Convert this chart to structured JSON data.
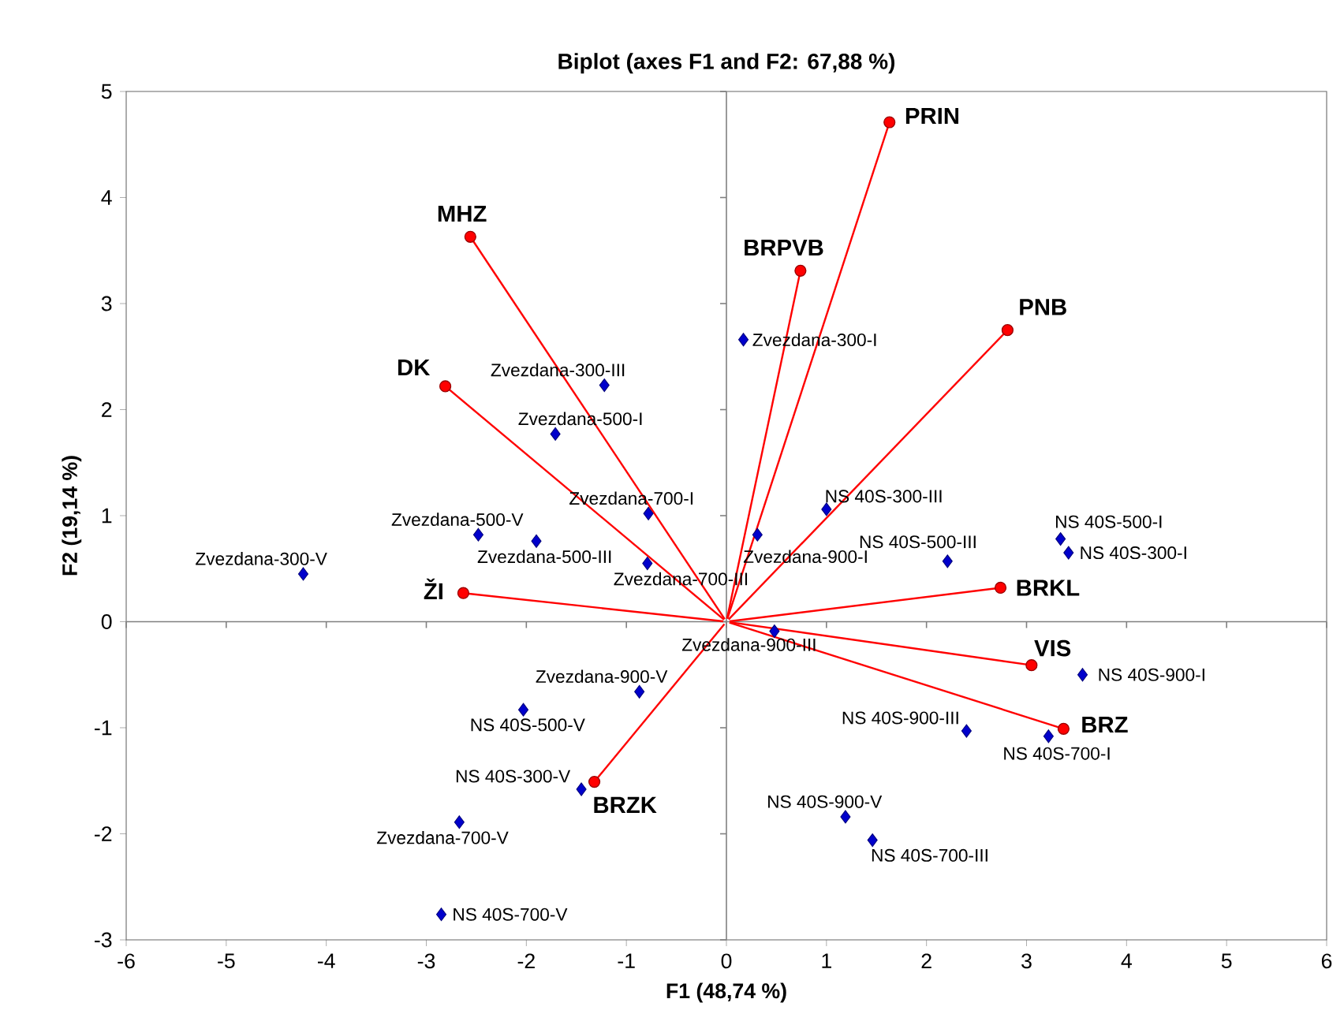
{
  "chart_data": {
    "type": "scatter",
    "title": "Biplot (axes F1 and F2: 67,88 %)",
    "xlabel": "F1 (48,74 %)",
    "ylabel": "F2 (19,14 %)",
    "xlim": [
      -6,
      6
    ],
    "ylim": [
      -3,
      5
    ],
    "xticks": [
      -6,
      -5,
      -4,
      -3,
      -2,
      -1,
      0,
      1,
      2,
      3,
      4,
      5,
      6
    ],
    "yticks": [
      -3,
      -2,
      -1,
      0,
      1,
      2,
      3,
      4,
      5
    ],
    "series": [
      {
        "type": "scatter",
        "color": "#0000cc",
        "marker": "diamond",
        "x": [
          0.17,
          -1.22,
          -1.71,
          -0.78,
          -2.48,
          -1.9,
          -0.79,
          -4.23,
          0.31,
          1.0,
          2.21,
          3.34,
          3.42,
          0.48,
          3.56,
          2.4,
          3.22,
          1.19,
          1.46,
          -0.87,
          -2.03,
          -1.45,
          -2.67,
          -2.85
        ],
        "values": [
          2.66,
          2.23,
          1.77,
          1.02,
          0.82,
          0.76,
          0.55,
          0.45,
          0.82,
          1.06,
          0.57,
          0.78,
          0.65,
          -0.09,
          -0.5,
          -1.03,
          -1.08,
          -1.84,
          -2.06,
          -0.66,
          -0.83,
          -1.58,
          -1.89,
          -2.76
        ]
      },
      {
        "type": "line",
        "name": "PRIN",
        "color": "#ff0000",
        "marker": "circle",
        "x": [
          0,
          1.63
        ],
        "values": [
          0,
          4.71
        ]
      },
      {
        "type": "line",
        "name": "MHZ",
        "color": "#ff0000",
        "marker": "circle",
        "x": [
          0,
          -2.56
        ],
        "values": [
          0,
          3.63
        ]
      },
      {
        "type": "line",
        "name": "BRPVB",
        "color": "#ff0000",
        "marker": "circle",
        "x": [
          0,
          0.74
        ],
        "values": [
          0,
          3.31
        ]
      },
      {
        "type": "line",
        "name": "PNB",
        "color": "#ff0000",
        "marker": "circle",
        "x": [
          0,
          2.81
        ],
        "values": [
          0,
          2.75
        ]
      },
      {
        "type": "line",
        "name": "DK",
        "color": "#ff0000",
        "marker": "circle",
        "x": [
          0,
          -2.81
        ],
        "values": [
          0,
          2.22
        ]
      },
      {
        "type": "line",
        "name": "ŽI",
        "color": "#ff0000",
        "marker": "circle",
        "x": [
          0,
          -2.63
        ],
        "values": [
          0,
          0.27
        ]
      },
      {
        "type": "line",
        "name": "BRKL",
        "color": "#ff0000",
        "marker": "circle",
        "x": [
          0,
          2.74
        ],
        "values": [
          0,
          0.32
        ]
      },
      {
        "type": "line",
        "name": "VIS",
        "color": "#ff0000",
        "marker": "circle",
        "x": [
          0,
          3.05
        ],
        "values": [
          0,
          -0.41
        ]
      },
      {
        "type": "line",
        "name": "BRZ",
        "color": "#ff0000",
        "marker": "circle",
        "x": [
          0,
          3.37
        ],
        "values": [
          0,
          -1.01
        ]
      },
      {
        "type": "line",
        "name": "BRZK",
        "color": "#ff0000",
        "marker": "circle",
        "x": [
          0,
          -1.32
        ],
        "values": [
          0,
          -1.51
        ]
      }
    ],
    "annotations": [
      {
        "text": "Zvezdana-300-I",
        "x": 0.17,
        "y": 2.66
      },
      {
        "text": "Zvezdana-300-III",
        "x": -1.22,
        "y": 2.23
      },
      {
        "text": "Zvezdana-500-I",
        "x": -1.71,
        "y": 1.77
      },
      {
        "text": "Zvezdana-700-I",
        "x": -0.78,
        "y": 1.02
      },
      {
        "text": "Zvezdana-500-V",
        "x": -2.48,
        "y": 0.82
      },
      {
        "text": "Zvezdana-500-III",
        "x": -1.9,
        "y": 0.76
      },
      {
        "text": "Zvezdana-700-III",
        "x": -0.79,
        "y": 0.55
      },
      {
        "text": "Zvezdana-300-V",
        "x": -4.23,
        "y": 0.45
      },
      {
        "text": "Zvezdana-900-I",
        "x": 0.31,
        "y": 0.82
      },
      {
        "text": "NS 40S-300-III",
        "x": 1.0,
        "y": 1.06
      },
      {
        "text": "NS 40S-500-III",
        "x": 2.21,
        "y": 0.57
      },
      {
        "text": "NS 40S-500-I",
        "x": 3.34,
        "y": 0.78
      },
      {
        "text": "NS 40S-300-I",
        "x": 3.42,
        "y": 0.65
      },
      {
        "text": "Zvezdana-900-III",
        "x": 0.48,
        "y": -0.09
      },
      {
        "text": "NS 40S-900-I",
        "x": 3.56,
        "y": -0.5
      },
      {
        "text": "NS 40S-900-III",
        "x": 2.4,
        "y": -1.03
      },
      {
        "text": "NS 40S-700-I",
        "x": 3.22,
        "y": -1.08
      },
      {
        "text": "NS 40S-900-V",
        "x": 1.19,
        "y": -1.84
      },
      {
        "text": "NS 40S-700-III",
        "x": 1.46,
        "y": -2.06
      },
      {
        "text": "Zvezdana-900-V",
        "x": -0.87,
        "y": -0.66
      },
      {
        "text": "NS 40S-500-V",
        "x": -2.03,
        "y": -0.83
      },
      {
        "text": "NS 40S-300-V",
        "x": -1.45,
        "y": -1.58
      },
      {
        "text": "Zvezdana-700-V",
        "x": -2.67,
        "y": -1.89
      },
      {
        "text": "NS 40S-700-V",
        "x": -2.85,
        "y": -2.76
      }
    ]
  }
}
